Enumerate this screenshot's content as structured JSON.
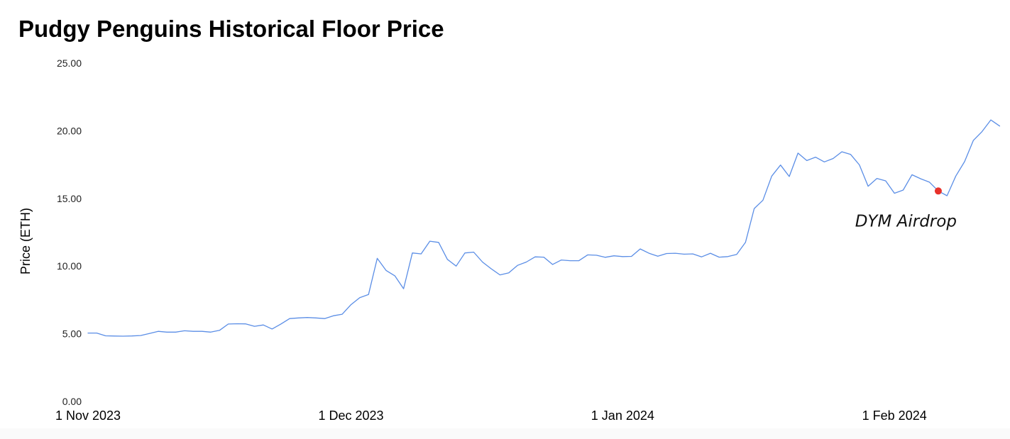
{
  "chart_data": {
    "type": "line",
    "title": "Pudgy Penguins Historical Floor Price",
    "ylabel": "Price (ETH)",
    "xlabel": "",
    "ylim": [
      0,
      25
    ],
    "grid": false,
    "y_ticks": [
      "0.00",
      "5.00",
      "10.00",
      "15.00",
      "20.00",
      "25.00"
    ],
    "y_tick_values": [
      0,
      5,
      10,
      15,
      20,
      25
    ],
    "x_ticks": [
      {
        "label": "1 Nov 2023",
        "date": "2023-11-01"
      },
      {
        "label": "1 Dec 2023",
        "date": "2023-12-01"
      },
      {
        "label": "1 Jan 2024",
        "date": "2024-01-01"
      },
      {
        "label": "1 Feb 2024",
        "date": "2024-02-01"
      }
    ],
    "series": [
      {
        "color": "#5b8ee6",
        "points": [
          [
            "2023-11-01",
            5.05
          ],
          [
            "2023-11-02",
            5.05
          ],
          [
            "2023-11-03",
            4.85
          ],
          [
            "2023-11-04",
            4.83
          ],
          [
            "2023-11-05",
            4.82
          ],
          [
            "2023-11-06",
            4.84
          ],
          [
            "2023-11-07",
            4.87
          ],
          [
            "2023-11-08",
            5.02
          ],
          [
            "2023-11-09",
            5.18
          ],
          [
            "2023-11-10",
            5.12
          ],
          [
            "2023-11-11",
            5.12
          ],
          [
            "2023-11-12",
            5.22
          ],
          [
            "2023-11-13",
            5.18
          ],
          [
            "2023-11-14",
            5.18
          ],
          [
            "2023-11-15",
            5.12
          ],
          [
            "2023-11-16",
            5.25
          ],
          [
            "2023-11-17",
            5.72
          ],
          [
            "2023-11-18",
            5.74
          ],
          [
            "2023-11-19",
            5.73
          ],
          [
            "2023-11-20",
            5.55
          ],
          [
            "2023-11-21",
            5.65
          ],
          [
            "2023-11-22",
            5.35
          ],
          [
            "2023-11-23",
            5.72
          ],
          [
            "2023-11-24",
            6.12
          ],
          [
            "2023-11-25",
            6.17
          ],
          [
            "2023-11-26",
            6.2
          ],
          [
            "2023-11-27",
            6.17
          ],
          [
            "2023-11-28",
            6.12
          ],
          [
            "2023-11-29",
            6.33
          ],
          [
            "2023-11-30",
            6.44
          ],
          [
            "2023-12-01",
            7.15
          ],
          [
            "2023-12-02",
            7.67
          ],
          [
            "2023-12-03",
            7.9
          ],
          [
            "2023-12-04",
            10.57
          ],
          [
            "2023-12-05",
            9.68
          ],
          [
            "2023-12-06",
            9.28
          ],
          [
            "2023-12-07",
            8.33
          ],
          [
            "2023-12-08",
            10.97
          ],
          [
            "2023-12-09",
            10.9
          ],
          [
            "2023-12-10",
            11.84
          ],
          [
            "2023-12-11",
            11.75
          ],
          [
            "2023-12-12",
            10.5
          ],
          [
            "2023-12-13",
            10
          ],
          [
            "2023-12-14",
            10.97
          ],
          [
            "2023-12-15",
            11.03
          ],
          [
            "2023-12-16",
            10.3
          ],
          [
            "2023-12-17",
            9.8
          ],
          [
            "2023-12-18",
            9.35
          ],
          [
            "2023-12-19",
            9.5
          ],
          [
            "2023-12-20",
            10.05
          ],
          [
            "2023-12-21",
            10.3
          ],
          [
            "2023-12-22",
            10.68
          ],
          [
            "2023-12-23",
            10.66
          ],
          [
            "2023-12-24",
            10.12
          ],
          [
            "2023-12-25",
            10.45
          ],
          [
            "2023-12-26",
            10.4
          ],
          [
            "2023-12-27",
            10.4
          ],
          [
            "2023-12-28",
            10.83
          ],
          [
            "2023-12-29",
            10.8
          ],
          [
            "2023-12-30",
            10.65
          ],
          [
            "2023-12-31",
            10.76
          ],
          [
            "2024-01-01",
            10.7
          ],
          [
            "2024-01-02",
            10.72
          ],
          [
            "2024-01-03",
            11.27
          ],
          [
            "2024-01-04",
            10.95
          ],
          [
            "2024-01-05",
            10.73
          ],
          [
            "2024-01-06",
            10.93
          ],
          [
            "2024-01-07",
            10.95
          ],
          [
            "2024-01-08",
            10.88
          ],
          [
            "2024-01-09",
            10.9
          ],
          [
            "2024-01-10",
            10.68
          ],
          [
            "2024-01-11",
            10.95
          ],
          [
            "2024-01-12",
            10.66
          ],
          [
            "2024-01-13",
            10.7
          ],
          [
            "2024-01-14",
            10.86
          ],
          [
            "2024-01-15",
            11.75
          ],
          [
            "2024-01-16",
            14.25
          ],
          [
            "2024-01-17",
            14.87
          ],
          [
            "2024-01-18",
            16.65
          ],
          [
            "2024-01-19",
            17.47
          ],
          [
            "2024-01-20",
            16.62
          ],
          [
            "2024-01-21",
            18.35
          ],
          [
            "2024-01-22",
            17.8
          ],
          [
            "2024-01-23",
            18.05
          ],
          [
            "2024-01-24",
            17.7
          ],
          [
            "2024-01-25",
            17.95
          ],
          [
            "2024-01-26",
            18.45
          ],
          [
            "2024-01-27",
            18.25
          ],
          [
            "2024-01-28",
            17.48
          ],
          [
            "2024-01-29",
            15.9
          ],
          [
            "2024-01-30",
            16.48
          ],
          [
            "2024-01-31",
            16.3
          ],
          [
            "2024-02-01",
            15.38
          ],
          [
            "2024-02-02",
            15.62
          ],
          [
            "2024-02-03",
            16.75
          ],
          [
            "2024-02-04",
            16.45
          ],
          [
            "2024-02-05",
            16.2
          ],
          [
            "2024-02-06",
            15.55
          ],
          [
            "2024-02-07",
            15.2
          ],
          [
            "2024-02-08",
            16.65
          ],
          [
            "2024-02-09",
            17.72
          ],
          [
            "2024-02-10",
            19.28
          ],
          [
            "2024-02-11",
            19.95
          ],
          [
            "2024-02-12",
            20.8
          ],
          [
            "2024-02-13",
            20.35
          ]
        ]
      }
    ],
    "annotations": [
      {
        "text": "DYM Airdrop",
        "date": "2024-02-06",
        "value": 15.55,
        "marker_color": "#e8312a"
      }
    ]
  }
}
